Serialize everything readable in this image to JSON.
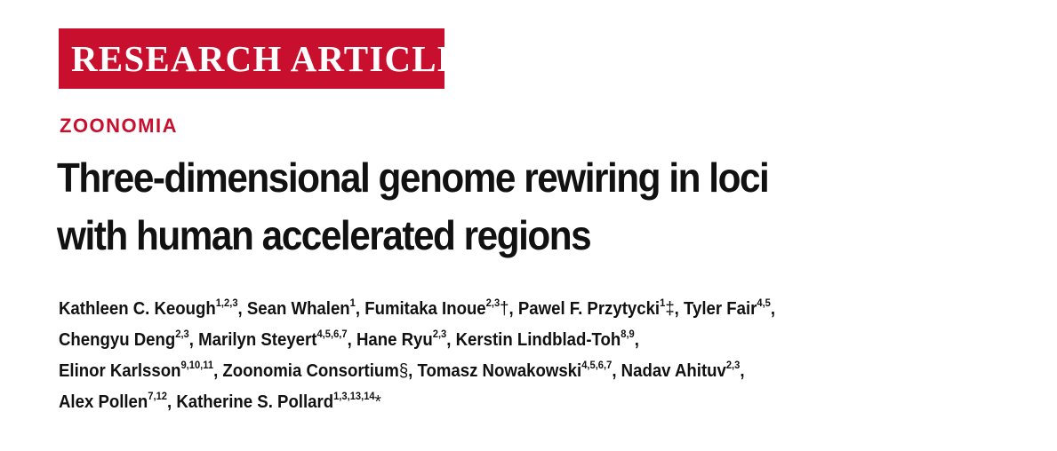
{
  "header": {
    "banner": "RESEARCH ARTICLE",
    "section": "ZOONOMIA"
  },
  "article": {
    "title_lines": [
      "Three-dimensional genome rewiring in loci",
      "with human accelerated regions"
    ]
  },
  "authors": [
    {
      "name": "Kathleen C. Keough",
      "affil": "1,2,3",
      "mark": "",
      "sep": ", "
    },
    {
      "name": "Sean Whalen",
      "affil": "1",
      "mark": "",
      "sep": ", "
    },
    {
      "name": "Fumitaka Inoue",
      "affil": "2,3",
      "mark": "†",
      "sep": ", "
    },
    {
      "name": "Pawel F. Przytycki",
      "affil": "1",
      "mark": "‡",
      "sep": ", "
    },
    {
      "name": "Tyler Fair",
      "affil": "4,5",
      "mark": "",
      "sep": ","
    },
    {
      "name": "Chengyu Deng",
      "affil": "2,3",
      "mark": "",
      "sep": ", "
    },
    {
      "name": "Marilyn Steyert",
      "affil": "4,5,6,7",
      "mark": "",
      "sep": ", "
    },
    {
      "name": "Hane Ryu",
      "affil": "2,3",
      "mark": "",
      "sep": ", "
    },
    {
      "name": "Kerstin Lindblad-Toh",
      "affil": "8,9",
      "mark": "",
      "sep": ","
    },
    {
      "name": "Elinor Karlsson",
      "affil": "9,10,11",
      "mark": "",
      "sep": ", "
    },
    {
      "name": "Zoonomia Consortium",
      "affil": "",
      "mark": "§",
      "sep": ", "
    },
    {
      "name": "Tomasz Nowakowski",
      "affil": "4,5,6,7",
      "mark": "",
      "sep": ", "
    },
    {
      "name": "Nadav Ahituv",
      "affil": "2,3",
      "mark": "",
      "sep": ","
    },
    {
      "name": "Alex Pollen",
      "affil": "7,12",
      "mark": "",
      "sep": ", "
    },
    {
      "name": "Katherine S. Pollard",
      "affil": "1,3,13,14",
      "mark": "*",
      "sep": ""
    }
  ]
}
